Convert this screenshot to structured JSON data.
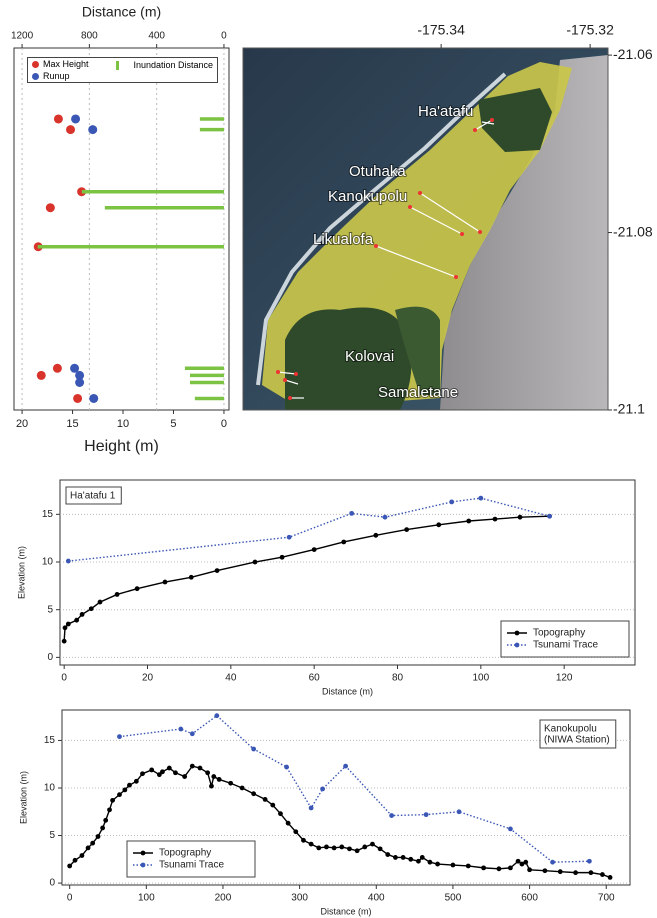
{
  "chart_data": [
    {
      "type": "scatter",
      "xlabel": "Height (m)",
      "x2label": "Distance (m)",
      "xlim": [
        20.8,
        -0.5
      ],
      "xticks": [
        20,
        15,
        10,
        5,
        0
      ],
      "x2lim": [
        1248,
        -30
      ],
      "x2ticks": [
        1200,
        800,
        400,
        0
      ],
      "ylim": [
        -21.1,
        -21.0592
      ],
      "grid": true,
      "series": [
        {
          "name": "Max Height",
          "color": "#d9342b",
          "marker": "circle",
          "values": [
            16.4,
            15.2,
            14.1,
            17.2,
            18.4,
            16.5,
            18.1,
            14.5
          ],
          "y": [
            -21.0672,
            -21.0684,
            -21.0754,
            -21.0772,
            -21.0816,
            -21.0953,
            -21.0961,
            -21.0987
          ]
        },
        {
          "name": "Runup",
          "color": "#3a57b5",
          "marker": "circle",
          "values": [
            14.7,
            13.0,
            14.8,
            14.3,
            14.3,
            12.9
          ],
          "y": [
            -21.0672,
            -21.0684,
            -21.0953,
            -21.0961,
            -21.0969,
            -21.0987
          ]
        },
        {
          "name": "Inundation Distance",
          "color": "#7cc243",
          "marker": "line",
          "axis": "x2",
          "values": [
            143,
            143,
            845,
            708,
            1107,
            232,
            202,
            202,
            173
          ],
          "y": [
            -21.0672,
            -21.0684,
            -21.0754,
            -21.0772,
            -21.0816,
            -21.0953,
            -21.0961,
            -21.0969,
            -21.0987
          ]
        }
      ]
    },
    {
      "type": "map",
      "xlim": [
        -175.3666,
        -175.3176
      ],
      "xticks": [
        -175.34,
        -175.32
      ],
      "ylim": [
        -21.1,
        -21.0592
      ],
      "yticks": [
        -21.06,
        -21.08,
        -21.1
      ],
      "labels": [
        "Ha'atafu",
        "Otuhaka",
        "Kanokupolu",
        "Likualofa",
        "Kolovai",
        "Samaletane"
      ]
    },
    {
      "type": "line",
      "annotation": [
        "Ha'atafu 1"
      ],
      "xlabel": "Distance (m)",
      "ylabel": "Elevation (m)",
      "xlim": [
        -1,
        137
      ],
      "xticks": [
        0,
        20,
        40,
        60,
        80,
        100,
        120
      ],
      "ylim": [
        -0.8,
        18.6
      ],
      "yticks": [
        0,
        5,
        10,
        15
      ],
      "grid": true,
      "legend": "lower right",
      "series": [
        {
          "name": "Topography",
          "color": "#000000",
          "linestyle": "solid",
          "x": [
            0,
            0.2,
            1,
            3,
            4.3,
            6.5,
            8.6,
            12.7,
            17.5,
            24.2,
            30.5,
            36.7,
            45.8,
            52.3,
            60,
            67.1,
            74.8,
            82.2,
            89.9,
            97.1,
            103.4,
            109.4,
            116.5
          ],
          "values": [
            1.7,
            3.1,
            3.5,
            3.9,
            4.5,
            5.1,
            5.8,
            6.6,
            7.2,
            7.9,
            8.4,
            9.1,
            10,
            10.5,
            11.3,
            12.1,
            12.8,
            13.4,
            13.9,
            14.3,
            14.5,
            14.7,
            14.8
          ]
        },
        {
          "name": "Tsunami Trace",
          "color": "#3a57b5",
          "linestyle": "dotted",
          "x": [
            1,
            54,
            69,
            77,
            93,
            100,
            116.5
          ],
          "values": [
            10.1,
            12.6,
            15.1,
            14.7,
            16.3,
            16.7,
            14.8
          ]
        }
      ]
    },
    {
      "type": "line",
      "annotation": [
        "Kanokupolu",
        "(NIWA Station)"
      ],
      "xlabel": "Distance (m)",
      "ylabel": "Elevation (m)",
      "xlim": [
        -10,
        731
      ],
      "xticks": [
        0,
        100,
        200,
        300,
        400,
        500,
        600,
        700
      ],
      "ylim": [
        -0.2,
        18.2
      ],
      "yticks": [
        0,
        5,
        10,
        15
      ],
      "grid": true,
      "legend": "lower left",
      "series": [
        {
          "name": "Topography",
          "color": "#000000",
          "linestyle": "solid",
          "x": [
            0,
            7,
            16,
            24,
            30,
            37,
            43,
            47,
            52,
            56,
            65,
            72,
            78,
            87,
            95,
            107,
            117,
            121,
            130,
            138,
            150,
            160,
            170,
            180,
            185,
            188,
            195,
            210,
            225,
            240,
            255,
            265,
            275,
            285,
            295,
            305,
            315,
            325,
            335,
            345,
            355,
            365,
            375,
            385,
            395,
            405,
            415,
            425,
            435,
            445,
            455,
            460,
            470,
            480,
            500,
            520,
            540,
            560,
            575,
            585,
            590,
            595,
            600,
            620,
            640,
            660,
            680,
            695,
            705
          ],
          "values": [
            1.8,
            2.4,
            2.9,
            3.7,
            4.2,
            4.9,
            5.8,
            6.6,
            7.7,
            8.7,
            9.3,
            9.8,
            10.3,
            10.7,
            11.5,
            11.9,
            11.4,
            11.7,
            12.1,
            11.6,
            11.2,
            12.3,
            12.1,
            11.6,
            10.2,
            11.2,
            10.9,
            10.5,
            10,
            9.4,
            8.8,
            8.2,
            7.3,
            6.3,
            5.4,
            4.5,
            4.1,
            3.7,
            3.8,
            3.7,
            3.8,
            3.6,
            3.4,
            3.8,
            4.1,
            3.6,
            3,
            2.7,
            2.7,
            2.5,
            2.3,
            2.7,
            2.2,
            2,
            1.9,
            1.8,
            1.6,
            1.5,
            1.6,
            2.3,
            2,
            2.2,
            1.4,
            1.3,
            1.2,
            1.1,
            1.1,
            0.9,
            0.6
          ]
        },
        {
          "name": "Tsunami Trace",
          "color": "#3a57b5",
          "linestyle": "dotted",
          "x": [
            65,
            145,
            160,
            192,
            240,
            283,
            315,
            330,
            360,
            420,
            465,
            508,
            575,
            630,
            678
          ],
          "values": [
            15.4,
            16.2,
            15.7,
            17.6,
            14.1,
            12.2,
            7.9,
            9.9,
            12.3,
            7.1,
            7.2,
            7.5,
            5.7,
            2.2,
            2.3
          ]
        }
      ]
    }
  ]
}
